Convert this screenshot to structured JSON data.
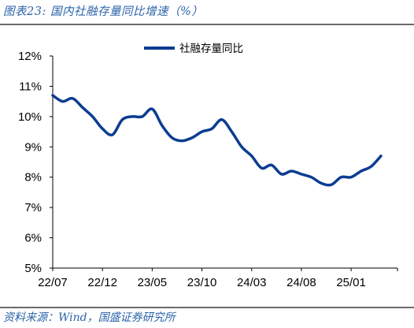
{
  "figure": {
    "title": "图表23:  国内社融存量同比增速（%）",
    "source": "资料来源：Wind，国盛证券研究所",
    "line_color": "#0b3d91",
    "accent_color": "#2a63a8"
  },
  "chart_data": {
    "type": "line",
    "title": "",
    "xlabel": "",
    "ylabel": "",
    "ylim": [
      5,
      12
    ],
    "yticks": [
      "5%",
      "6%",
      "7%",
      "8%",
      "9%",
      "10%",
      "11%",
      "12%"
    ],
    "xtick_labels": [
      "22/07",
      "22/12",
      "23/05",
      "23/10",
      "24/03",
      "24/08",
      "25/01"
    ],
    "legend_position": "top-center",
    "grid": false,
    "series": [
      {
        "name": "社融存量同比",
        "x": [
          "22/07",
          "22/08",
          "22/09",
          "22/10",
          "22/11",
          "22/12",
          "23/01",
          "23/02",
          "23/03",
          "23/04",
          "23/05",
          "23/06",
          "23/07",
          "23/08",
          "23/09",
          "23/10",
          "23/11",
          "23/12",
          "24/01",
          "24/02",
          "24/03",
          "24/04",
          "24/05",
          "24/06",
          "24/07",
          "24/08",
          "24/09",
          "24/10",
          "24/11",
          "24/12",
          "25/01",
          "25/02",
          "25/03",
          "25/04"
        ],
        "values": [
          10.7,
          10.5,
          10.6,
          10.3,
          10.0,
          9.6,
          9.4,
          9.9,
          10.0,
          10.0,
          10.25,
          9.7,
          9.3,
          9.2,
          9.3,
          9.5,
          9.6,
          9.9,
          9.5,
          9.0,
          8.7,
          8.3,
          8.4,
          8.1,
          8.2,
          8.1,
          8.0,
          7.8,
          7.75,
          8.0,
          8.0,
          8.2,
          8.35,
          8.7
        ]
      }
    ]
  }
}
